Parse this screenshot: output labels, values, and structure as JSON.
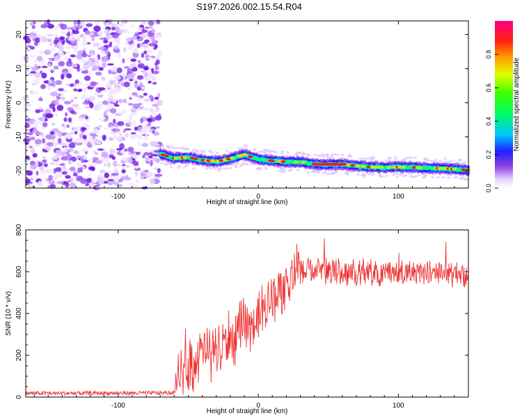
{
  "title": "S197.2026.002.15.54.R04",
  "chart_data": [
    {
      "type": "heatmap",
      "xlabel": "Height of straight line (km)",
      "ylabel": "Frequency (Hz)",
      "xlim": [
        -166,
        150
      ],
      "ylim": [
        -25,
        24
      ],
      "xticks": [
        -100,
        0,
        100
      ],
      "yticks": [
        -20,
        -10,
        0,
        10,
        20
      ],
      "noise_region_x": [
        -166,
        -70
      ],
      "ridge": {
        "x": [
          -70,
          -60,
          -50,
          -40,
          -30,
          -20,
          -10,
          0,
          10,
          20,
          30,
          40,
          50,
          60,
          70,
          80,
          90,
          100,
          110,
          120,
          130,
          140,
          150
        ],
        "freq": [
          -15.0,
          -16.2,
          -16.0,
          -16.8,
          -17.2,
          -16.4,
          -15.2,
          -16.5,
          -17.0,
          -17.3,
          -17.3,
          -18.0,
          -18.1,
          -18.0,
          -18.5,
          -18.8,
          -19.0,
          -18.8,
          -18.9,
          -19.1,
          -19.2,
          -19.4,
          -19.8
        ]
      },
      "colorbar": {
        "label": "Normalized spectral amplitude",
        "range": [
          0,
          1
        ],
        "ticks": [
          "0.0",
          "0.2",
          "0.4",
          "0.6",
          "0.8"
        ]
      }
    },
    {
      "type": "line",
      "xlabel": "Height of straight line (km)",
      "ylabel": "SNR (10 * v/v)",
      "xlim": [
        -166,
        150
      ],
      "ylim": [
        0,
        800
      ],
      "xticks": [
        -100,
        0,
        100
      ],
      "yticks": [
        0,
        200,
        400,
        600,
        800
      ],
      "color": "#ee3333",
      "trend": {
        "x": [
          -166,
          -60,
          -58,
          -50,
          -40,
          -30,
          -20,
          -10,
          0,
          10,
          20,
          30,
          40,
          60,
          80,
          100,
          120,
          150
        ],
        "y": [
          18,
          20,
          120,
          160,
          200,
          240,
          280,
          320,
          370,
          480,
          560,
          600,
          610,
          600,
          595,
          595,
          595,
          590
        ]
      }
    }
  ]
}
